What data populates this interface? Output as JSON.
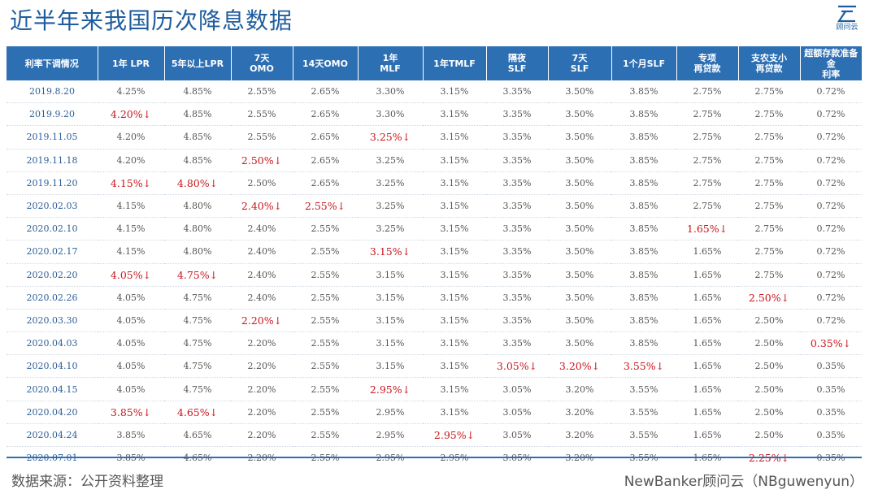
{
  "title": "近半年来我国历次降息数据",
  "logo": {
    "text": "顾问云"
  },
  "colors": {
    "header_bg": "#2d6fb3",
    "cut": "#c8161d",
    "date": "#2d5f98",
    "title": "#1f5d9e"
  },
  "cut_marker": "↓",
  "table": {
    "headers": [
      "利率下调情况",
      "1年 LPR",
      "5年以上LPR",
      "7天\nOMO",
      "14天OMO",
      "1年\nMLF",
      "1年TMLF",
      "隔夜\nSLF",
      "7天\nSLF",
      "1个月SLF",
      "专项\n再贷款",
      "支农支小\n再贷款",
      "超额存款准备金\n利率"
    ],
    "rows": [
      {
        "date": "2019.8.20",
        "values": [
          "4.25%",
          "4.85%",
          "2.55%",
          "2.65%",
          "3.30%",
          "3.15%",
          "3.35%",
          "3.50%",
          "3.85%",
          "2.75%",
          "2.75%",
          "0.72%"
        ],
        "cuts": []
      },
      {
        "date": "2019.9.20",
        "values": [
          "4.20%",
          "4.85%",
          "2.55%",
          "2.65%",
          "3.30%",
          "3.15%",
          "3.35%",
          "3.50%",
          "3.85%",
          "2.75%",
          "2.75%",
          "0.72%"
        ],
        "cuts": [
          0
        ]
      },
      {
        "date": "2019.11.05",
        "values": [
          "4.20%",
          "4.85%",
          "2.55%",
          "2.65%",
          "3.25%",
          "3.15%",
          "3.35%",
          "3.50%",
          "3.85%",
          "2.75%",
          "2.75%",
          "0.72%"
        ],
        "cuts": [
          4
        ]
      },
      {
        "date": "2019.11.18",
        "values": [
          "4.20%",
          "4.85%",
          "2.50%",
          "2.65%",
          "3.25%",
          "3.15%",
          "3.35%",
          "3.50%",
          "3.85%",
          "2.75%",
          "2.75%",
          "0.72%"
        ],
        "cuts": [
          2
        ]
      },
      {
        "date": "2019.11.20",
        "values": [
          "4.15%",
          "4.80%",
          "2.50%",
          "2.65%",
          "3.25%",
          "3.15%",
          "3.35%",
          "3.50%",
          "3.85%",
          "2.75%",
          "2.75%",
          "0.72%"
        ],
        "cuts": [
          0,
          1
        ]
      },
      {
        "date": "2020.02.03",
        "values": [
          "4.15%",
          "4.80%",
          "2.40%",
          "2.55%",
          "3.25%",
          "3.15%",
          "3.35%",
          "3.50%",
          "3.85%",
          "2.75%",
          "2.75%",
          "0.72%"
        ],
        "cuts": [
          2,
          3
        ]
      },
      {
        "date": "2020.02.10",
        "values": [
          "4.15%",
          "4.80%",
          "2.40%",
          "2.55%",
          "3.25%",
          "3.15%",
          "3.35%",
          "3.50%",
          "3.85%",
          "1.65%",
          "2.75%",
          "0.72%"
        ],
        "cuts": [
          9
        ]
      },
      {
        "date": "2020.02.17",
        "values": [
          "4.15%",
          "4.80%",
          "2.40%",
          "2.55%",
          "3.15%",
          "3.15%",
          "3.35%",
          "3.50%",
          "3.85%",
          "1.65%",
          "2.75%",
          "0.72%"
        ],
        "cuts": [
          4
        ]
      },
      {
        "date": "2020.02.20",
        "values": [
          "4.05%",
          "4.75%",
          "2.40%",
          "2.55%",
          "3.15%",
          "3.15%",
          "3.35%",
          "3.50%",
          "3.85%",
          "1.65%",
          "2.75%",
          "0.72%"
        ],
        "cuts": [
          0,
          1
        ]
      },
      {
        "date": "2020.02.26",
        "values": [
          "4.05%",
          "4.75%",
          "2.40%",
          "2.55%",
          "3.15%",
          "3.15%",
          "3.35%",
          "3.50%",
          "3.85%",
          "1.65%",
          "2.50%",
          "0.72%"
        ],
        "cuts": [
          10
        ]
      },
      {
        "date": "2020.03.30",
        "values": [
          "4.05%",
          "4.75%",
          "2.20%",
          "2.55%",
          "3.15%",
          "3.15%",
          "3.35%",
          "3.50%",
          "3.85%",
          "1.65%",
          "2.50%",
          "0.72%"
        ],
        "cuts": [
          2
        ]
      },
      {
        "date": "2020.04.03",
        "values": [
          "4.05%",
          "4.75%",
          "2.20%",
          "2.55%",
          "3.15%",
          "3.15%",
          "3.35%",
          "3.50%",
          "3.85%",
          "1.65%",
          "2.50%",
          "0.35%"
        ],
        "cuts": [
          11
        ]
      },
      {
        "date": "2020.04.10",
        "values": [
          "4.05%",
          "4.75%",
          "2.20%",
          "2.55%",
          "3.15%",
          "3.15%",
          "3.05%",
          "3.20%",
          "3.55%",
          "1.65%",
          "2.50%",
          "0.35%"
        ],
        "cuts": [
          6,
          7,
          8
        ]
      },
      {
        "date": "2020.04.15",
        "values": [
          "4.05%",
          "4.75%",
          "2.20%",
          "2.55%",
          "2.95%",
          "3.15%",
          "3.05%",
          "3.20%",
          "3.55%",
          "1.65%",
          "2.50%",
          "0.35%"
        ],
        "cuts": [
          4
        ]
      },
      {
        "date": "2020.04.20",
        "values": [
          "3.85%",
          "4.65%",
          "2.20%",
          "2.55%",
          "2.95%",
          "3.15%",
          "3.05%",
          "3.20%",
          "3.55%",
          "1.65%",
          "2.50%",
          "0.35%"
        ],
        "cuts": [
          0,
          1
        ]
      },
      {
        "date": "2020.04.24",
        "values": [
          "3.85%",
          "4.65%",
          "2.20%",
          "2.55%",
          "2.95%",
          "2.95%",
          "3.05%",
          "3.20%",
          "3.55%",
          "1.65%",
          "2.50%",
          "0.35%"
        ],
        "cuts": [
          5
        ]
      },
      {
        "date": "2020.07.01",
        "values": [
          "3.85%",
          "4.65%",
          "2.20%",
          "2.55%",
          "2.95%",
          "2.95%",
          "3.05%",
          "3.20%",
          "3.55%",
          "1.65%",
          "2.25%",
          "0.35%"
        ],
        "cuts": [
          10
        ]
      }
    ]
  },
  "footer": {
    "source": "数据来源：公开资料整理",
    "credit": "NewBanker顾问云（NBguwenyun）"
  }
}
